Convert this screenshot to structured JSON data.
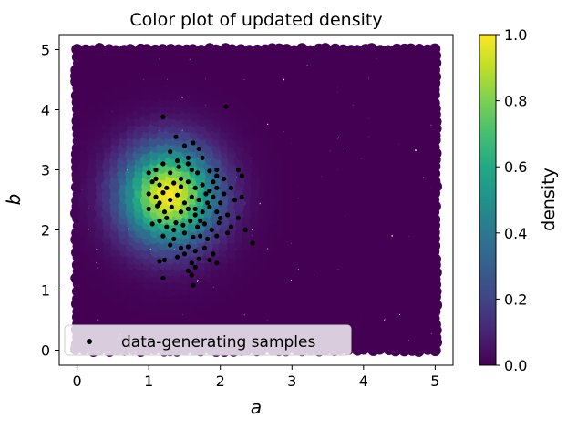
{
  "chart_data": {
    "type": "scatter",
    "title": "Color plot of updated density",
    "xlabel": "a",
    "ylabel": "b",
    "xlim": [
      -0.25,
      5.25
    ],
    "ylim": [
      -0.25,
      5.25
    ],
    "xticks": [
      "0",
      "1",
      "2",
      "3",
      "4",
      "5"
    ],
    "yticks": [
      "0",
      "1",
      "2",
      "3",
      "4",
      "5"
    ],
    "colorbar": {
      "label": "density",
      "range": [
        0.0,
        1.0
      ],
      "ticks": [
        "0.0",
        "0.2",
        "0.4",
        "0.6",
        "0.8",
        "1.0"
      ],
      "colormap": "viridis"
    },
    "density_grid": {
      "domain_x": [
        0,
        5
      ],
      "domain_y": [
        0,
        5
      ],
      "peak_center": [
        1.3,
        2.6
      ],
      "peak_spread": [
        0.45,
        0.55
      ],
      "peak_value": 1.0
    },
    "legend": {
      "placement": "lower-left",
      "entries": [
        "data-generating samples"
      ]
    },
    "series": [
      {
        "name": "data-generating samples",
        "color": "#000000",
        "points": [
          [
            1.2,
            3.88
          ],
          [
            2.08,
            4.05
          ],
          [
            1.3,
            3.3
          ],
          [
            1.38,
            3.55
          ],
          [
            1.5,
            3.4
          ],
          [
            1.62,
            3.45
          ],
          [
            1.7,
            3.35
          ],
          [
            1.1,
            3.0
          ],
          [
            1.2,
            3.1
          ],
          [
            1.3,
            2.95
          ],
          [
            1.42,
            3.05
          ],
          [
            1.55,
            3.1
          ],
          [
            1.68,
            2.95
          ],
          [
            1.85,
            2.98
          ],
          [
            1.95,
            2.9
          ],
          [
            2.05,
            2.85
          ],
          [
            2.25,
            3.0
          ],
          [
            2.3,
            2.9
          ],
          [
            1.05,
            2.8
          ],
          [
            1.15,
            2.75
          ],
          [
            1.25,
            2.7
          ],
          [
            1.35,
            2.78
          ],
          [
            1.45,
            2.72
          ],
          [
            1.55,
            2.8
          ],
          [
            1.65,
            2.7
          ],
          [
            1.75,
            2.75
          ],
          [
            1.85,
            2.65
          ],
          [
            1.95,
            2.7
          ],
          [
            2.05,
            2.6
          ],
          [
            2.15,
            2.7
          ],
          [
            1.0,
            2.6
          ],
          [
            1.1,
            2.55
          ],
          [
            1.2,
            2.62
          ],
          [
            1.3,
            2.5
          ],
          [
            1.4,
            2.58
          ],
          [
            1.5,
            2.45
          ],
          [
            1.6,
            2.55
          ],
          [
            1.7,
            2.5
          ],
          [
            1.8,
            2.6
          ],
          [
            1.9,
            2.55
          ],
          [
            2.0,
            2.45
          ],
          [
            2.2,
            2.5
          ],
          [
            2.3,
            2.55
          ],
          [
            1.0,
            2.35
          ],
          [
            1.12,
            2.4
          ],
          [
            1.22,
            2.3
          ],
          [
            1.32,
            2.38
          ],
          [
            1.45,
            2.3
          ],
          [
            1.55,
            2.35
          ],
          [
            1.65,
            2.25
          ],
          [
            1.75,
            2.3
          ],
          [
            1.85,
            2.38
          ],
          [
            1.95,
            2.3
          ],
          [
            2.1,
            2.25
          ],
          [
            2.25,
            2.2
          ],
          [
            1.05,
            2.1
          ],
          [
            1.15,
            2.15
          ],
          [
            1.25,
            2.05
          ],
          [
            1.38,
            2.12
          ],
          [
            1.48,
            2.08
          ],
          [
            1.58,
            2.15
          ],
          [
            1.68,
            2.05
          ],
          [
            1.78,
            2.1
          ],
          [
            1.88,
            2.0
          ],
          [
            1.98,
            2.12
          ],
          [
            2.1,
            1.95
          ],
          [
            1.2,
            1.9
          ],
          [
            1.35,
            1.85
          ],
          [
            1.5,
            1.95
          ],
          [
            1.62,
            1.88
          ],
          [
            1.72,
            1.9
          ],
          [
            1.82,
            1.85
          ],
          [
            1.95,
            1.9
          ],
          [
            2.35,
            2.0
          ],
          [
            2.45,
            1.78
          ],
          [
            1.3,
            1.75
          ],
          [
            1.45,
            1.7
          ],
          [
            1.55,
            1.72
          ],
          [
            1.65,
            1.65
          ],
          [
            1.78,
            1.7
          ],
          [
            1.9,
            1.6
          ],
          [
            1.4,
            1.55
          ],
          [
            1.5,
            1.6
          ],
          [
            1.7,
            1.52
          ],
          [
            1.15,
            1.48
          ],
          [
            1.22,
            1.5
          ],
          [
            1.6,
            1.45
          ],
          [
            1.85,
            1.5
          ],
          [
            1.95,
            1.45
          ],
          [
            1.55,
            1.32
          ],
          [
            1.65,
            1.38
          ],
          [
            1.2,
            1.2
          ],
          [
            1.6,
            1.25
          ],
          [
            1.62,
            1.08
          ],
          [
            1.0,
            2.95
          ],
          [
            1.1,
            2.85
          ],
          [
            1.15,
            2.45
          ],
          [
            1.25,
            2.2
          ],
          [
            1.35,
            2.0
          ],
          [
            1.45,
            2.85
          ],
          [
            1.6,
            3.0
          ],
          [
            1.75,
            3.2
          ],
          [
            1.55,
            3.2
          ],
          [
            1.4,
            3.15
          ],
          [
            1.65,
            2.35
          ],
          [
            1.72,
            2.15
          ],
          [
            1.82,
            2.45
          ],
          [
            2.0,
            2.2
          ],
          [
            2.15,
            2.05
          ],
          [
            1.9,
            2.8
          ],
          [
            1.95,
            3.0
          ]
        ]
      }
    ]
  }
}
